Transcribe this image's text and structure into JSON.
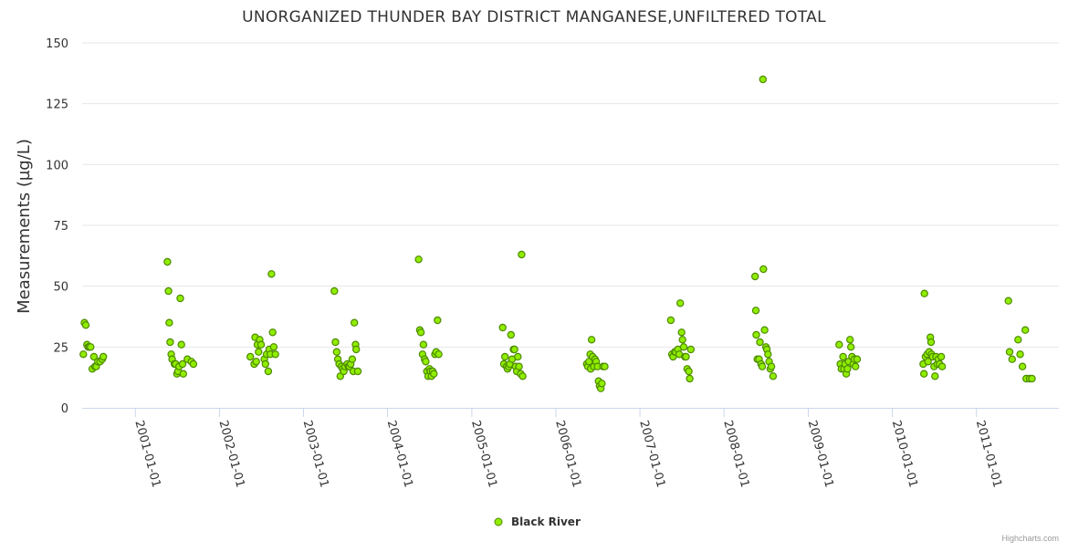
{
  "chart_data": {
    "type": "scatter",
    "title": "UNORGANIZED THUNDER BAY DISTRICT MANGANESE,UNFILTERED TOTAL",
    "xlabel": "",
    "ylabel": "Measurements (µg/L)",
    "ylim": [
      0,
      150
    ],
    "yticks": [
      0,
      25,
      50,
      75,
      100,
      125,
      150
    ],
    "xlim": [
      "2000-05-15",
      "2011-12-25"
    ],
    "xtick_labels": [
      "2001-01-01",
      "2002-01-01",
      "2003-01-01",
      "2004-01-01",
      "2005-01-01",
      "2006-01-01",
      "2007-01-01",
      "2008-01-01",
      "2009-01-01",
      "2010-01-01",
      "2011-01-01"
    ],
    "grid": true,
    "legend_position": "bottom-center",
    "colors": {
      "fill": "#90ed00",
      "stroke": "#4d8a00",
      "grid": "#e6e6e6",
      "axis": "#ccd6eb"
    },
    "series": [
      {
        "name": "Black River",
        "points": [
          [
            "2000-05-20",
            22
          ],
          [
            "2000-05-25",
            35
          ],
          [
            "2000-05-31",
            34
          ],
          [
            "2000-06-05",
            26
          ],
          [
            "2000-06-10",
            25
          ],
          [
            "2000-06-15",
            25
          ],
          [
            "2000-06-21",
            25
          ],
          [
            "2000-06-28",
            16
          ],
          [
            "2000-07-05",
            21
          ],
          [
            "2000-07-10",
            17
          ],
          [
            "2000-07-15",
            17
          ],
          [
            "2000-07-22",
            19
          ],
          [
            "2000-08-01",
            19
          ],
          [
            "2000-08-10",
            20
          ],
          [
            "2000-08-15",
            21
          ],
          [
            "2001-05-20",
            60
          ],
          [
            "2001-05-25",
            48
          ],
          [
            "2001-05-28",
            35
          ],
          [
            "2001-06-01",
            27
          ],
          [
            "2001-06-06",
            22
          ],
          [
            "2001-06-10",
            20
          ],
          [
            "2001-06-20",
            18
          ],
          [
            "2001-06-25",
            18
          ],
          [
            "2001-07-01",
            14
          ],
          [
            "2001-07-05",
            15
          ],
          [
            "2001-07-10",
            17
          ],
          [
            "2001-07-15",
            45
          ],
          [
            "2001-07-20",
            26
          ],
          [
            "2001-07-25",
            18
          ],
          [
            "2001-07-28",
            14
          ],
          [
            "2001-08-15",
            20
          ],
          [
            "2001-09-01",
            19
          ],
          [
            "2001-09-10",
            18
          ],
          [
            "2002-05-15",
            21
          ],
          [
            "2002-06-01",
            18
          ],
          [
            "2002-06-05",
            29
          ],
          [
            "2002-06-10",
            19
          ],
          [
            "2002-06-15",
            26
          ],
          [
            "2002-06-20",
            23
          ],
          [
            "2002-06-25",
            28
          ],
          [
            "2002-07-01",
            26
          ],
          [
            "2002-07-15",
            20
          ],
          [
            "2002-07-20",
            18
          ],
          [
            "2002-07-25",
            22
          ],
          [
            "2002-08-01",
            15
          ],
          [
            "2002-08-05",
            24
          ],
          [
            "2002-08-10",
            22
          ],
          [
            "2002-08-15",
            55
          ],
          [
            "2002-08-20",
            31
          ],
          [
            "2002-08-25",
            25
          ],
          [
            "2002-09-01",
            22
          ],
          [
            "2003-05-15",
            48
          ],
          [
            "2003-05-20",
            27
          ],
          [
            "2003-05-25",
            23
          ],
          [
            "2003-05-30",
            20
          ],
          [
            "2003-06-05",
            18
          ],
          [
            "2003-06-10",
            13
          ],
          [
            "2003-06-15",
            17
          ],
          [
            "2003-06-20",
            16
          ],
          [
            "2003-06-25",
            15
          ],
          [
            "2003-07-01",
            17
          ],
          [
            "2003-07-10",
            18
          ],
          [
            "2003-07-15",
            17
          ],
          [
            "2003-07-20",
            17
          ],
          [
            "2003-07-25",
            18
          ],
          [
            "2003-08-01",
            20
          ],
          [
            "2003-08-05",
            15
          ],
          [
            "2003-08-10",
            35
          ],
          [
            "2003-08-15",
            26
          ],
          [
            "2003-08-18",
            24
          ],
          [
            "2003-08-25",
            15
          ],
          [
            "2004-05-15",
            61
          ],
          [
            "2004-05-20",
            32
          ],
          [
            "2004-05-25",
            31
          ],
          [
            "2004-06-01",
            22
          ],
          [
            "2004-06-05",
            26
          ],
          [
            "2004-06-10",
            20
          ],
          [
            "2004-06-15",
            19
          ],
          [
            "2004-06-20",
            15
          ],
          [
            "2004-06-25",
            13
          ],
          [
            "2004-07-01",
            16
          ],
          [
            "2004-07-05",
            15
          ],
          [
            "2004-07-10",
            13
          ],
          [
            "2004-07-15",
            15
          ],
          [
            "2004-07-20",
            14
          ],
          [
            "2004-07-25",
            22
          ],
          [
            "2004-07-30",
            23
          ],
          [
            "2004-08-05",
            36
          ],
          [
            "2004-08-10",
            22
          ],
          [
            "2005-05-15",
            33
          ],
          [
            "2005-05-20",
            18
          ],
          [
            "2005-05-25",
            21
          ],
          [
            "2005-06-01",
            17
          ],
          [
            "2005-06-05",
            16
          ],
          [
            "2005-06-10",
            17
          ],
          [
            "2005-06-15",
            18
          ],
          [
            "2005-06-20",
            30
          ],
          [
            "2005-06-25",
            20
          ],
          [
            "2005-07-01",
            24
          ],
          [
            "2005-07-05",
            24
          ],
          [
            "2005-07-10",
            17
          ],
          [
            "2005-07-15",
            15
          ],
          [
            "2005-07-20",
            21
          ],
          [
            "2005-07-25",
            17
          ],
          [
            "2005-08-01",
            14
          ],
          [
            "2005-08-05",
            63
          ],
          [
            "2005-08-10",
            13
          ],
          [
            "2006-05-15",
            18
          ],
          [
            "2006-05-20",
            17
          ],
          [
            "2006-05-25",
            19
          ],
          [
            "2006-05-30",
            22
          ],
          [
            "2006-06-01",
            16
          ],
          [
            "2006-06-05",
            28
          ],
          [
            "2006-06-10",
            21
          ],
          [
            "2006-06-15",
            17
          ],
          [
            "2006-06-20",
            20
          ],
          [
            "2006-06-25",
            19
          ],
          [
            "2006-07-01",
            17
          ],
          [
            "2006-07-05",
            11
          ],
          [
            "2006-07-10",
            9
          ],
          [
            "2006-07-15",
            8
          ],
          [
            "2006-07-20",
            10
          ],
          [
            "2006-07-25",
            17
          ],
          [
            "2006-08-01",
            17
          ],
          [
            "2007-05-15",
            36
          ],
          [
            "2007-05-20",
            22
          ],
          [
            "2007-05-25",
            21
          ],
          [
            "2007-06-01",
            23
          ],
          [
            "2007-06-05",
            23
          ],
          [
            "2007-06-15",
            24
          ],
          [
            "2007-06-20",
            22
          ],
          [
            "2007-06-25",
            43
          ],
          [
            "2007-07-01",
            31
          ],
          [
            "2007-07-05",
            28
          ],
          [
            "2007-07-10",
            25
          ],
          [
            "2007-07-15",
            21
          ],
          [
            "2007-07-20",
            21
          ],
          [
            "2007-07-25",
            16
          ],
          [
            "2007-08-01",
            15
          ],
          [
            "2007-08-05",
            12
          ],
          [
            "2007-08-10",
            24
          ],
          [
            "2008-05-15",
            54
          ],
          [
            "2008-05-18",
            40
          ],
          [
            "2008-05-20",
            30
          ],
          [
            "2008-05-25",
            20
          ],
          [
            "2008-06-01",
            20
          ],
          [
            "2008-06-05",
            27
          ],
          [
            "2008-06-10",
            18
          ],
          [
            "2008-06-15",
            17
          ],
          [
            "2008-06-18",
            135
          ],
          [
            "2008-06-20",
            57
          ],
          [
            "2008-06-25",
            32
          ],
          [
            "2008-07-01",
            25
          ],
          [
            "2008-07-05",
            24
          ],
          [
            "2008-07-10",
            22
          ],
          [
            "2008-07-15",
            19
          ],
          [
            "2008-07-20",
            16
          ],
          [
            "2008-07-25",
            17
          ],
          [
            "2008-08-01",
            13
          ],
          [
            "2009-05-15",
            26
          ],
          [
            "2009-05-20",
            18
          ],
          [
            "2009-05-25",
            16
          ],
          [
            "2009-06-01",
            21
          ],
          [
            "2009-06-05",
            16
          ],
          [
            "2009-06-10",
            18
          ],
          [
            "2009-06-15",
            14
          ],
          [
            "2009-06-20",
            16
          ],
          [
            "2009-06-25",
            19
          ],
          [
            "2009-07-01",
            28
          ],
          [
            "2009-07-05",
            25
          ],
          [
            "2009-07-10",
            21
          ],
          [
            "2009-07-15",
            18
          ],
          [
            "2009-07-20",
            20
          ],
          [
            "2009-07-25",
            17
          ],
          [
            "2009-08-01",
            20
          ],
          [
            "2010-05-15",
            18
          ],
          [
            "2010-05-18",
            14
          ],
          [
            "2010-05-20",
            47
          ],
          [
            "2010-05-25",
            21
          ],
          [
            "2010-06-01",
            22
          ],
          [
            "2010-06-05",
            19
          ],
          [
            "2010-06-10",
            23
          ],
          [
            "2010-06-15",
            29
          ],
          [
            "2010-06-18",
            27
          ],
          [
            "2010-06-20",
            22
          ],
          [
            "2010-06-25",
            21
          ],
          [
            "2010-07-01",
            17
          ],
          [
            "2010-07-05",
            13
          ],
          [
            "2010-07-10",
            21
          ],
          [
            "2010-07-15",
            18
          ],
          [
            "2010-07-20",
            20
          ],
          [
            "2010-07-25",
            18
          ],
          [
            "2010-08-01",
            21
          ],
          [
            "2010-08-05",
            17
          ],
          [
            "2011-05-20",
            44
          ],
          [
            "2011-05-25",
            23
          ],
          [
            "2011-06-05",
            20
          ],
          [
            "2011-07-01",
            28
          ],
          [
            "2011-07-10",
            22
          ],
          [
            "2011-07-20",
            17
          ],
          [
            "2011-08-01",
            32
          ],
          [
            "2011-08-05",
            12
          ],
          [
            "2011-08-20",
            12
          ],
          [
            "2011-08-30",
            12
          ]
        ]
      }
    ]
  },
  "credits": "Highcharts.com"
}
